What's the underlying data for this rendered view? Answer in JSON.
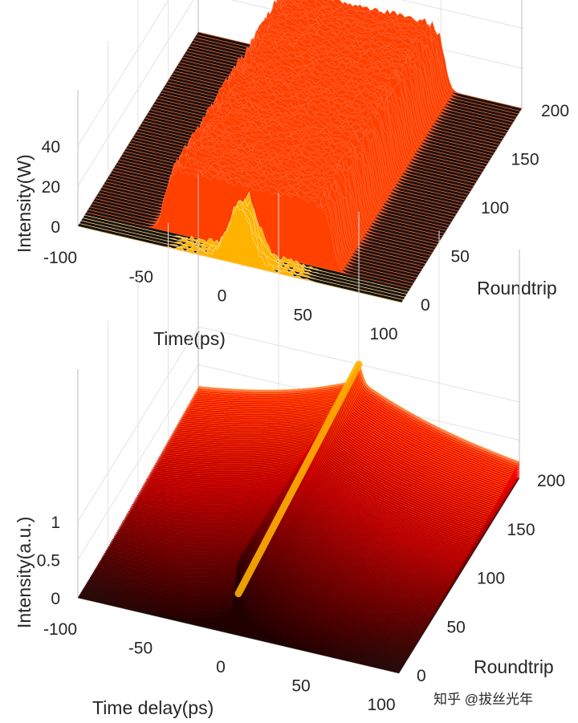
{
  "chart_data": [
    {
      "type": "waterfall-3d",
      "xlabel": "Time(ps)",
      "ylabel": "Roundtrip",
      "zlabel": "Intensity(W)",
      "xlim": [
        -100,
        100
      ],
      "ylim": [
        0,
        200
      ],
      "zlim": [
        0,
        40
      ],
      "x_ticks": [
        "-100",
        "-50",
        "0",
        "50",
        "100"
      ],
      "y_ticks": [
        "0",
        "50",
        "100",
        "150",
        "200"
      ],
      "z_ticks": [
        "0",
        "20",
        "40"
      ],
      "grid": true,
      "colormap": "hot",
      "pulse": {
        "profile": "flat-top",
        "center_ps": 0,
        "half_width_ps": 52,
        "plateau_W": 32,
        "edge_ripple_W": 4,
        "initial_peak_W": 24,
        "initial_peak_roundtrips": 12
      }
    },
    {
      "type": "waterfall-3d",
      "xlabel": "Time delay(ps)",
      "ylabel": "Roundtrip",
      "zlabel": "Intensity(a.u.)",
      "xlim": [
        -100,
        100
      ],
      "ylim": [
        0,
        200
      ],
      "zlim": [
        0,
        1
      ],
      "x_ticks": [
        "-100",
        "-50",
        "0",
        "50",
        "100"
      ],
      "y_ticks": [
        "0",
        "50",
        "100",
        "150",
        "200"
      ],
      "z_ticks": [
        "0",
        "0.5",
        "1"
      ],
      "grid": true,
      "colormap": "hot",
      "trace": {
        "profile": "pedestal-with-central-spike",
        "center_ps": 0,
        "spike_width_ps": 3,
        "pedestal_width_ps": 90,
        "start_pedestal": 0.35,
        "end_pedestal": 0.8,
        "peak": 1.0
      }
    }
  ],
  "watermark": "知乎 @拔丝光年"
}
